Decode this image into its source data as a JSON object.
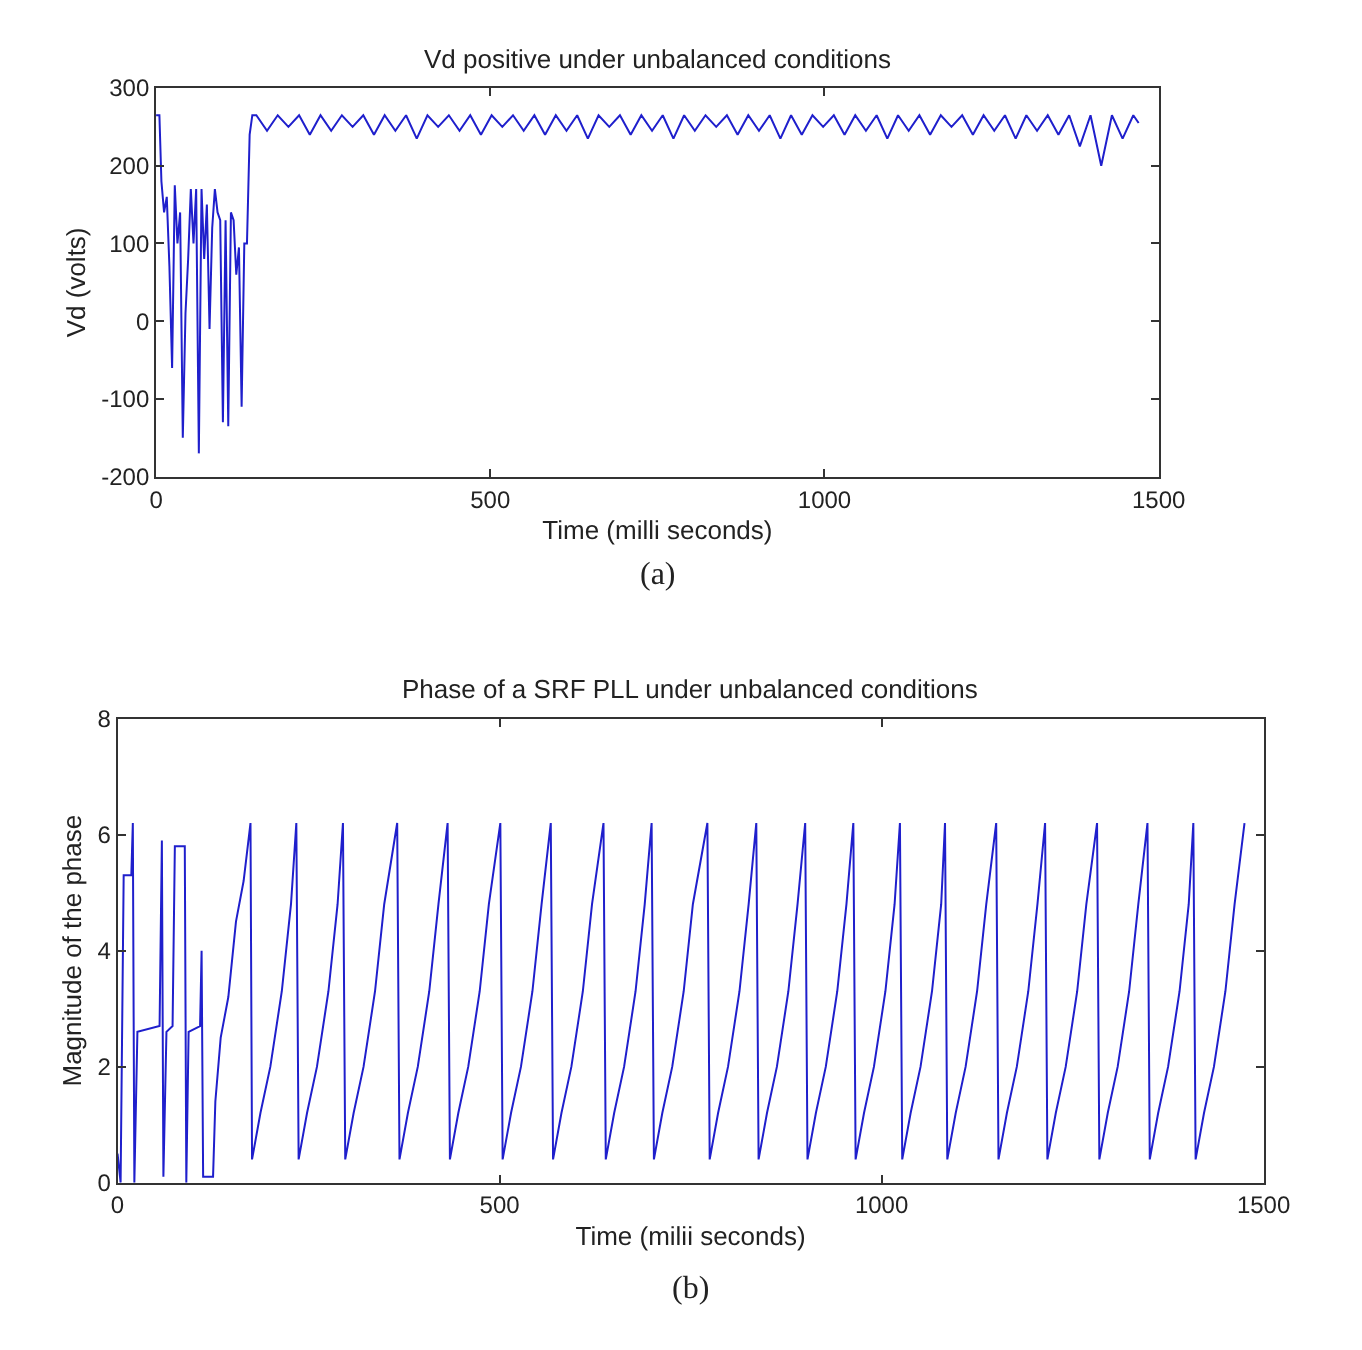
{
  "chart_data": [
    {
      "type": "line",
      "title": "Vd positive under unbalanced conditions",
      "xlabel": "Time (milli seconds)",
      "ylabel": "Vd (volts)",
      "annotations": [
        "(a)"
      ],
      "x": [
        0,
        5,
        8,
        12,
        16,
        20,
        24,
        28,
        32,
        36,
        40,
        44,
        48,
        52,
        56,
        60,
        64,
        68,
        72,
        76,
        80,
        84,
        88,
        92,
        96,
        100,
        104,
        108,
        112,
        116,
        120,
        124,
        128,
        132,
        136,
        140,
        144,
        150,
        166,
        182,
        198,
        214,
        230,
        246,
        262,
        278,
        294,
        310,
        326,
        342,
        358,
        374,
        390,
        406,
        422,
        438,
        454,
        470,
        486,
        502,
        518,
        534,
        550,
        566,
        582,
        598,
        614,
        630,
        646,
        662,
        678,
        694,
        710,
        726,
        742,
        758,
        774,
        790,
        806,
        822,
        838,
        854,
        870,
        886,
        902,
        918,
        934,
        950,
        966,
        982,
        998,
        1014,
        1030,
        1046,
        1062,
        1078,
        1094,
        1110,
        1126,
        1142,
        1158,
        1174,
        1190,
        1206,
        1222,
        1238,
        1254,
        1270,
        1286,
        1302,
        1318,
        1334,
        1350,
        1366,
        1382,
        1398,
        1414,
        1430,
        1446,
        1462,
        1470
      ],
      "values": [
        265,
        265,
        180,
        140,
        160,
        70,
        -60,
        175,
        100,
        140,
        -150,
        10,
        80,
        170,
        100,
        170,
        -170,
        170,
        80,
        150,
        -10,
        120,
        170,
        140,
        130,
        -130,
        130,
        -135,
        140,
        130,
        60,
        95,
        -110,
        100,
        100,
        240,
        265,
        265,
        245,
        265,
        250,
        265,
        240,
        265,
        245,
        265,
        250,
        265,
        240,
        265,
        245,
        265,
        235,
        265,
        250,
        265,
        245,
        265,
        240,
        265,
        250,
        265,
        245,
        265,
        240,
        265,
        245,
        265,
        235,
        265,
        250,
        265,
        240,
        265,
        245,
        265,
        235,
        265,
        245,
        265,
        250,
        265,
        240,
        265,
        245,
        265,
        235,
        265,
        240,
        265,
        250,
        265,
        240,
        265,
        245,
        265,
        235,
        265,
        245,
        265,
        240,
        265,
        250,
        265,
        240,
        265,
        245,
        265,
        235,
        265,
        245,
        265,
        240,
        265,
        225,
        265,
        200,
        265,
        235,
        265,
        255
      ],
      "color": "#1f1fcc",
      "xlim": [
        0,
        1500
      ],
      "ylim": [
        -200,
        300
      ],
      "xticks": [
        0,
        500,
        1000,
        1500
      ],
      "yticks": [
        -200,
        -100,
        0,
        100,
        200,
        300
      ]
    },
    {
      "type": "line",
      "title": "Phase of a SRF PLL under unbalanced conditions",
      "xlabel": "Time (milii seconds)",
      "ylabel": "Magnitude of the phase",
      "annotations": [
        "(b)"
      ],
      "x": [
        0,
        4,
        8,
        18,
        20,
        22,
        26,
        55,
        58,
        60,
        64,
        72,
        75,
        88,
        90,
        93,
        108,
        110,
        112,
        125,
        128,
        135,
        145,
        155,
        165,
        174,
        176,
        187,
        200,
        215,
        227,
        234,
        237,
        248,
        261,
        276,
        288,
        295,
        298,
        309,
        322,
        337,
        349,
        366,
        369,
        380,
        393,
        408,
        420,
        432,
        435,
        446,
        459,
        474,
        486,
        501,
        504,
        515,
        528,
        543,
        555,
        567,
        570,
        581,
        594,
        609,
        621,
        636,
        639,
        650,
        663,
        678,
        690,
        699,
        702,
        713,
        726,
        741,
        753,
        772,
        775,
        786,
        799,
        814,
        826,
        836,
        839,
        850,
        863,
        878,
        890,
        900,
        903,
        914,
        927,
        942,
        954,
        963,
        966,
        977,
        990,
        1005,
        1017,
        1024,
        1027,
        1038,
        1051,
        1066,
        1078,
        1083,
        1086,
        1097,
        1110,
        1125,
        1137,
        1150,
        1153,
        1164,
        1177,
        1192,
        1204,
        1214,
        1217,
        1228,
        1241,
        1256,
        1268,
        1282,
        1285,
        1296,
        1309,
        1324,
        1336,
        1348,
        1351,
        1362,
        1375,
        1390,
        1402,
        1408,
        1411,
        1422,
        1435,
        1450,
        1462,
        1475
      ],
      "values": [
        0.5,
        0,
        5.3,
        5.3,
        6.2,
        0,
        2.6,
        2.7,
        5.9,
        0.1,
        2.6,
        2.7,
        5.8,
        5.8,
        0,
        2.6,
        2.7,
        4.0,
        0.1,
        0.1,
        1.4,
        2.5,
        3.2,
        4.5,
        5.2,
        6.2,
        0.4,
        1.2,
        2.0,
        3.3,
        4.8,
        6.2,
        0.4,
        1.2,
        2.0,
        3.3,
        4.8,
        6.2,
        0.4,
        1.2,
        2.0,
        3.3,
        4.8,
        6.2,
        0.4,
        1.2,
        2.0,
        3.3,
        4.8,
        6.2,
        0.4,
        1.2,
        2.0,
        3.3,
        4.8,
        6.2,
        0.4,
        1.2,
        2.0,
        3.3,
        4.8,
        6.2,
        0.4,
        1.2,
        2.0,
        3.3,
        4.8,
        6.2,
        0.4,
        1.2,
        2.0,
        3.3,
        4.8,
        6.2,
        0.4,
        1.2,
        2.0,
        3.3,
        4.8,
        6.2,
        0.4,
        1.2,
        2.0,
        3.3,
        4.8,
        6.2,
        0.4,
        1.2,
        2.0,
        3.3,
        4.8,
        6.2,
        0.4,
        1.2,
        2.0,
        3.3,
        4.8,
        6.2,
        0.4,
        1.2,
        2.0,
        3.3,
        4.8,
        6.2,
        0.4,
        1.2,
        2.0,
        3.3,
        4.8,
        6.2,
        0.4,
        1.2,
        2.0,
        3.3,
        4.8,
        6.2,
        0.4,
        1.2,
        2.0,
        3.3,
        4.8,
        6.2,
        0.4,
        1.2,
        2.0,
        3.3,
        4.8,
        6.2,
        0.4,
        1.2,
        2.0,
        3.3,
        4.8,
        6.2,
        0.4,
        1.2,
        2.0,
        3.3,
        4.8,
        6.2,
        0.4,
        1.2,
        2.0,
        3.3,
        4.8,
        6.2
      ],
      "color": "#1f1fcc",
      "xlim": [
        0,
        1500
      ],
      "ylim": [
        0,
        8
      ],
      "xticks": [
        0,
        500,
        1000,
        1500
      ],
      "yticks": [
        0,
        2,
        4,
        6,
        8
      ]
    }
  ]
}
